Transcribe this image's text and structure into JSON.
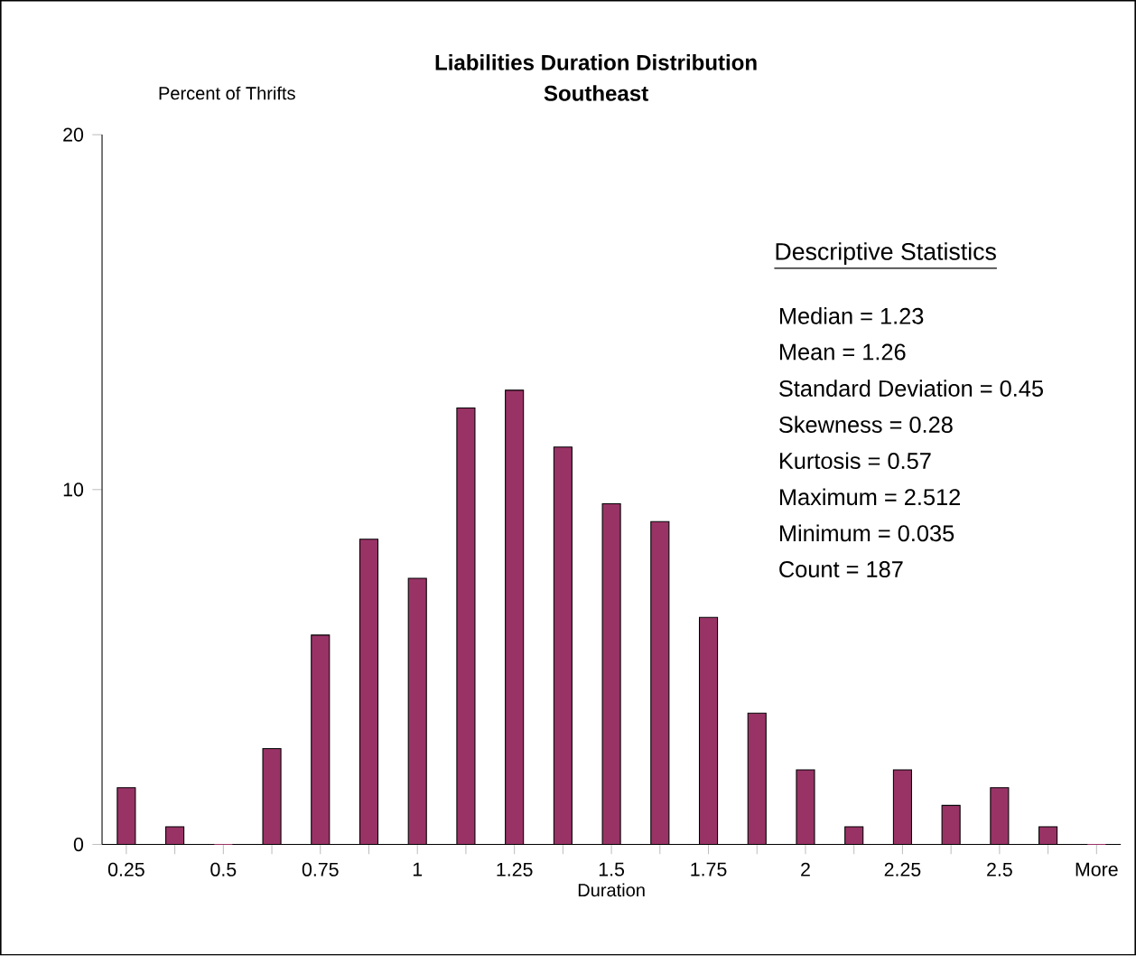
{
  "chart_data": {
    "type": "bar",
    "title": "Liabilities Duration Distribution",
    "subtitle": "Southeast",
    "xlabel": "Duration",
    "ylabel": "Percent of Thrifts",
    "categories": [
      "0.25",
      null,
      "0.5",
      null,
      "0.75",
      null,
      "1",
      null,
      "1.25",
      null,
      "1.5",
      null,
      "1.75",
      null,
      "2",
      null,
      "2.25",
      null,
      "2.5",
      null,
      "More"
    ],
    "values": [
      1.6,
      0.5,
      0,
      2.7,
      5.9,
      8.6,
      7.5,
      12.3,
      12.8,
      11.2,
      9.6,
      9.1,
      6.4,
      3.7,
      2.1,
      0.5,
      2.1,
      1.1,
      1.6,
      0.5,
      0
    ],
    "color": "#993366",
    "ylim": [
      0,
      20
    ],
    "yticks": [
      0,
      10,
      20
    ],
    "grid": false,
    "annotations": [
      "Descriptive Statistics",
      "Median = 1.23",
      "Mean = 1.26",
      "Standard Deviation = 0.45",
      "Skewness = 0.28",
      "Kurtosis = 0.57",
      "Maximum = 2.512",
      "Minimum = 0.035",
      "Count = 187"
    ]
  }
}
